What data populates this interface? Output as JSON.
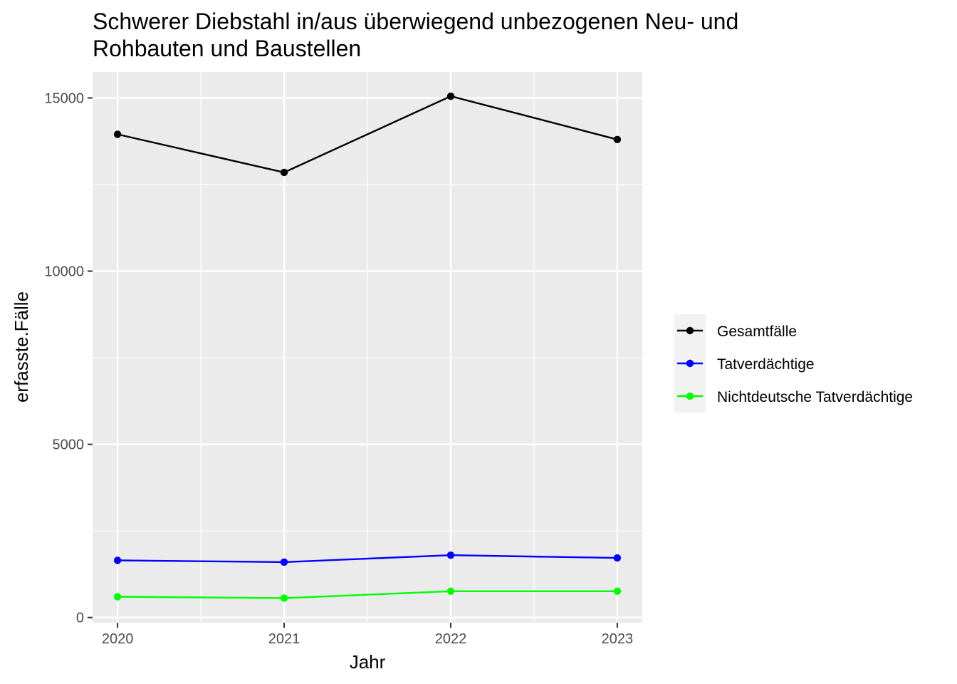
{
  "chart_data": {
    "type": "line",
    "title_line1": "Schwerer Diebstahl in/aus überwiegend unbezogenen Neu- und",
    "title_line2": "Rohbauten und Baustellen",
    "xlabel": "Jahr",
    "ylabel": "erfasste.Fälle",
    "x": [
      2020,
      2021,
      2022,
      2023
    ],
    "x_tick_labels": [
      "2020",
      "2021",
      "2022",
      "2023"
    ],
    "xlim": [
      2019.85,
      2023.15
    ],
    "ylim": [
      -150,
      15750
    ],
    "y_ticks": [
      0,
      5000,
      10000,
      15000
    ],
    "y_tick_labels": [
      "0",
      "5000",
      "10000",
      "15000"
    ],
    "grid": true,
    "legend_position": "right",
    "series": [
      {
        "name": "Gesamtfälle",
        "color": "#000000",
        "values": [
          13950,
          12850,
          15050,
          13800
        ]
      },
      {
        "name": "Tatverdächtige",
        "color": "#0000ff",
        "values": [
          1650,
          1600,
          1800,
          1720
        ]
      },
      {
        "name": "Nichtdeutsche Tatverdächtige",
        "color": "#00ff00",
        "values": [
          600,
          560,
          760,
          760
        ]
      }
    ],
    "colors": {
      "panel": "#ebebeb",
      "grid": "#ffffff",
      "legend_key": "#f2f2f2"
    }
  }
}
